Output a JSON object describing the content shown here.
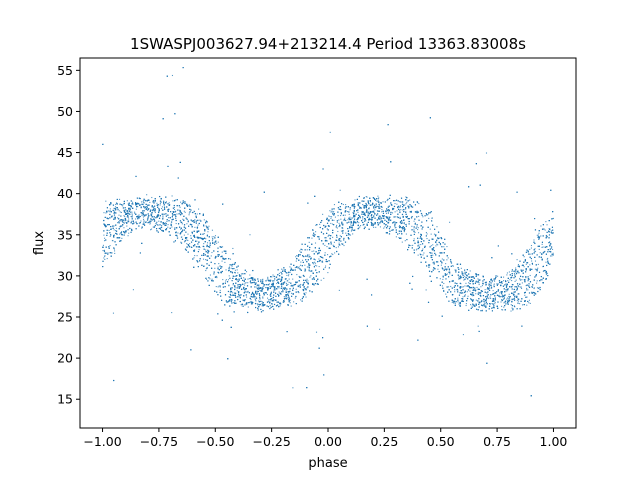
{
  "chart_data": {
    "type": "scatter",
    "title": "1SWASPJ003627.94+213214.4 Period 13363.83008s",
    "xlabel": "phase",
    "ylabel": "flux",
    "xlim": [
      -1.1,
      1.1
    ],
    "ylim": [
      11.5,
      56.5
    ],
    "xticks": [
      -1.0,
      -0.75,
      -0.5,
      -0.25,
      0.0,
      0.25,
      0.5,
      0.75,
      1.0
    ],
    "xtick_labels": [
      "−1.00",
      "−0.75",
      "−0.50",
      "−0.25",
      "0.00",
      "0.25",
      "0.50",
      "0.75",
      "1.00"
    ],
    "yticks": [
      15,
      20,
      25,
      30,
      35,
      40,
      45,
      50,
      55
    ],
    "ytick_labels": [
      "15",
      "20",
      "25",
      "30",
      "35",
      "40",
      "45",
      "50",
      "55"
    ],
    "grid": false,
    "legend": "none",
    "point_color": "#1f77b4",
    "phase_range": [
      -1.0,
      1.0
    ],
    "period_in_phase": 1.0,
    "light_curve": {
      "phase": [
        0.0,
        0.05,
        0.1,
        0.15,
        0.2,
        0.25,
        0.3,
        0.35,
        0.4,
        0.45,
        0.5,
        0.55,
        0.6,
        0.65,
        0.7,
        0.75,
        0.8,
        0.85,
        0.9,
        0.95
      ],
      "flux_center": [
        34.5,
        36.0,
        37.0,
        37.5,
        37.8,
        37.5,
        37.0,
        36.5,
        35.5,
        34.0,
        31.5,
        29.5,
        28.5,
        28.0,
        27.8,
        28.0,
        28.3,
        29.0,
        30.5,
        32.5
      ],
      "flux_spread": [
        3.6,
        3.0,
        2.0,
        1.7,
        1.7,
        1.8,
        2.2,
        2.8,
        3.2,
        3.8,
        3.6,
        3.0,
        2.2,
        2.0,
        1.8,
        1.9,
        2.2,
        2.8,
        3.4,
        3.8
      ]
    }
  }
}
